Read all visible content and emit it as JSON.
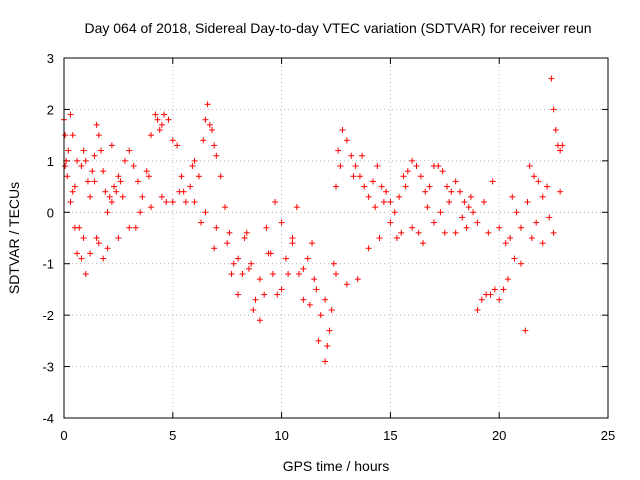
{
  "chart_data": {
    "type": "scatter",
    "title": "Day 064 of 2018, Sidereal Day-to-day VTEC variation (SDTVAR) for receiver reun",
    "xlabel": "GPS time / hours",
    "ylabel": "SDTVAR / TECUs",
    "xlim": [
      0,
      25
    ],
    "ylim": [
      -4,
      3
    ],
    "xticks": [
      "0",
      "5",
      "10",
      "15",
      "20",
      "25"
    ],
    "yticks": [
      "3",
      "2",
      "1",
      "0",
      "-1",
      "-2",
      "-3",
      "-4"
    ],
    "grid": true,
    "marker": "+",
    "color": "#ff0000",
    "series": [
      {
        "name": "SDTVAR",
        "x": [
          0.0,
          0.05,
          0.1,
          0.15,
          0.2,
          0.3,
          0.4,
          0.5,
          0.6,
          0.7,
          0.8,
          0.9,
          1.0,
          1.1,
          1.2,
          1.3,
          1.4,
          1.5,
          1.6,
          1.7,
          1.8,
          1.9,
          2.0,
          2.1,
          2.2,
          2.3,
          2.4,
          2.5,
          2.6,
          2.8,
          3.0,
          3.2,
          3.4,
          3.6,
          3.8,
          4.0,
          4.2,
          4.3,
          4.4,
          4.5,
          4.6,
          4.8,
          5.0,
          5.2,
          5.4,
          5.6,
          5.8,
          6.0,
          6.2,
          6.4,
          6.5,
          6.6,
          6.7,
          6.8,
          6.9,
          7.0,
          7.2,
          7.4,
          7.6,
          7.8,
          8.0,
          8.2,
          8.4,
          8.6,
          8.8,
          9.0,
          9.2,
          9.4,
          9.6,
          9.8,
          10.0,
          10.2,
          10.5,
          10.8,
          11.0,
          11.2,
          11.4,
          11.6,
          11.8,
          12.0,
          12.1,
          12.2,
          12.3,
          12.4,
          12.5,
          12.6,
          12.8,
          13.0,
          13.2,
          13.4,
          13.6,
          13.8,
          14.0,
          14.2,
          14.4,
          14.6,
          14.8,
          15.0,
          15.2,
          15.4,
          15.6,
          15.8,
          16.0,
          16.2,
          16.4,
          16.6,
          16.8,
          17.0,
          17.2,
          17.4,
          17.6,
          17.8,
          18.0,
          18.2,
          18.4,
          18.6,
          18.8,
          19.0,
          19.2,
          19.4,
          19.6,
          19.8,
          20.0,
          20.2,
          20.4,
          20.6,
          20.8,
          21.0,
          21.2,
          21.4,
          21.6,
          21.8,
          22.0,
          22.2,
          22.4,
          22.5,
          22.6,
          22.7,
          22.8,
          22.9,
          0.05,
          0.3,
          0.5,
          0.8,
          1.0,
          1.2,
          1.5,
          1.8,
          2.0,
          2.5,
          3.0,
          3.5,
          4.0,
          4.5,
          5.0,
          5.5,
          6.0,
          6.5,
          7.0,
          7.5,
          8.0,
          8.5,
          9.0,
          9.5,
          10.0,
          10.5,
          11.0,
          11.5,
          12.0,
          12.5,
          13.0,
          13.5,
          14.0,
          14.5,
          15.0,
          15.5,
          16.0,
          16.5,
          17.0,
          17.5,
          18.0,
          18.5,
          19.0,
          19.5,
          20.0,
          20.5,
          21.0,
          21.5,
          22.0,
          22.5,
          0.4,
          0.6,
          0.9,
          1.4,
          1.6,
          2.2,
          2.7,
          3.3,
          3.9,
          4.7,
          5.3,
          5.9,
          6.3,
          6.9,
          7.7,
          8.3,
          8.7,
          9.3,
          9.7,
          10.3,
          10.7,
          11.3,
          11.7,
          12.7,
          13.3,
          13.7,
          14.3,
          14.7,
          15.3,
          15.7,
          16.3,
          16.7,
          17.3,
          17.7,
          18.3,
          18.7,
          19.3,
          19.7,
          20.3,
          20.7,
          21.3,
          21.7,
          22.3,
          22.8
        ],
        "y": [
          1.8,
          1.5,
          1.0,
          0.7,
          1.2,
          1.9,
          1.5,
          0.5,
          -0.8,
          -0.3,
          0.9,
          1.2,
          1.0,
          0.6,
          0.3,
          0.8,
          1.1,
          1.7,
          1.5,
          1.2,
          0.8,
          0.4,
          0.0,
          0.3,
          0.2,
          0.5,
          0.4,
          0.7,
          0.6,
          1.0,
          1.2,
          0.9,
          0.6,
          0.3,
          0.8,
          1.5,
          1.9,
          1.8,
          1.6,
          1.7,
          1.9,
          1.8,
          1.4,
          1.3,
          0.7,
          0.2,
          0.5,
          1.0,
          0.7,
          1.4,
          1.8,
          2.1,
          1.7,
          1.6,
          1.3,
          1.1,
          0.7,
          0.1,
          -0.4,
          -1.0,
          -1.6,
          -1.2,
          -0.4,
          -1.0,
          -1.7,
          -2.1,
          -1.6,
          -0.8,
          -1.2,
          -1.6,
          -1.5,
          -0.9,
          -0.5,
          -1.2,
          -1.7,
          -0.9,
          -0.6,
          -1.5,
          -2.0,
          -2.9,
          -2.6,
          -2.3,
          -1.9,
          -1.0,
          0.5,
          1.2,
          1.6,
          1.4,
          1.1,
          0.9,
          0.7,
          0.5,
          0.3,
          0.6,
          0.9,
          0.5,
          0.4,
          0.2,
          0.0,
          0.3,
          0.7,
          0.8,
          1.0,
          0.9,
          0.7,
          0.4,
          0.5,
          0.9,
          0.9,
          0.8,
          0.5,
          0.4,
          0.6,
          0.4,
          0.2,
          0.1,
          0.0,
          -1.9,
          -1.7,
          -1.6,
          -1.6,
          -1.5,
          -1.7,
          -1.5,
          -1.3,
          0.3,
          0.0,
          -1.0,
          -2.3,
          0.9,
          0.7,
          0.6,
          0.3,
          0.5,
          2.6,
          2.0,
          1.6,
          1.3,
          1.2,
          1.3,
          0.9,
          0.2,
          -0.3,
          -0.9,
          -1.2,
          -0.8,
          -0.5,
          -0.9,
          -0.7,
          -0.5,
          -0.3,
          0.0,
          0.1,
          0.3,
          0.2,
          0.4,
          0.2,
          0.0,
          -0.3,
          -0.6,
          -0.9,
          -1.1,
          -1.3,
          -0.8,
          -0.2,
          -0.6,
          -1.1,
          -1.3,
          -1.7,
          -1.2,
          -1.4,
          -1.3,
          -0.7,
          -0.5,
          -0.2,
          -0.4,
          -0.3,
          -0.6,
          -0.2,
          -0.4,
          -0.4,
          -0.3,
          -0.2,
          -0.4,
          -0.3,
          -0.5,
          -0.3,
          -0.5,
          -0.6,
          -0.4,
          0.4,
          1.0,
          -0.5,
          0.6,
          -0.6,
          1.3,
          0.3,
          -0.3,
          0.7,
          0.2,
          0.4,
          0.9,
          -0.2,
          -0.7,
          -1.2,
          -0.5,
          -1.9,
          -0.3,
          0.2,
          -1.2,
          0.1,
          -1.8,
          -2.5,
          0.9,
          0.7,
          1.1,
          0.1,
          0.2,
          -0.5,
          0.5,
          -0.4,
          0.1,
          0.0,
          0.2,
          -0.1,
          0.3,
          0.2,
          0.6,
          -0.6,
          -0.9,
          0.2,
          -0.2,
          -0.1,
          0.4
        ]
      }
    ]
  }
}
